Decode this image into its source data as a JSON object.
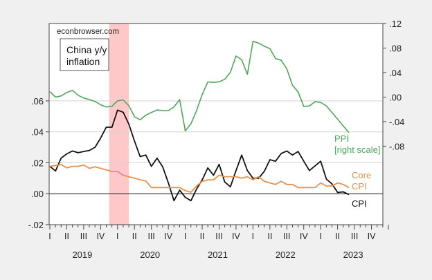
{
  "chart_data": {
    "type": "line",
    "title": "China y/y inflation",
    "watermark": "econbrowser.com",
    "x_frequency": "monthly",
    "x_range": [
      "2019-01",
      "2023-12"
    ],
    "x_quarter_labels": [
      "I",
      "II",
      "III",
      "IV"
    ],
    "x_year_labels": [
      "2019",
      "2020",
      "2021",
      "2022",
      "2023"
    ],
    "left_axis": {
      "ylim": [
        -0.02,
        0.11
      ],
      "ticks": [
        -0.02,
        0.0,
        0.02,
        0.04,
        0.06
      ],
      "tick_labels": [
        "-.02",
        ".00",
        ".02",
        ".04",
        ".06"
      ]
    },
    "right_axis": {
      "ylim": [
        -0.208,
        0.12
      ],
      "ticks": [
        -0.08,
        -0.04,
        0.0,
        0.04,
        0.08,
        0.12
      ],
      "tick_labels": [
        "-.08",
        "-.04",
        ".00",
        ".04",
        ".08",
        ".12"
      ]
    },
    "grid": "horizontal, left axis",
    "zero_line": true,
    "shaded_period": {
      "start": "2019-12",
      "end": "2020-03",
      "color": "#ffc8c8"
    },
    "start_month": "2019-01",
    "series": [
      {
        "name": "CPI",
        "label_lines": [
          "CPI"
        ],
        "axis": "left",
        "color": "#111111",
        "values": [
          0.0177,
          0.0147,
          0.023,
          0.0258,
          0.0276,
          0.0265,
          0.0273,
          0.028,
          0.03,
          0.036,
          0.043,
          0.043,
          0.054,
          0.0527,
          0.045,
          0.034,
          0.024,
          0.025,
          0.0177,
          0.023,
          0.0174,
          0.007,
          -0.0045,
          0.0023,
          -0.0023,
          -0.0045,
          0.003,
          0.009,
          0.0167,
          0.012,
          0.019,
          0.0076,
          0.0045,
          0.015,
          0.025,
          0.015,
          0.01,
          0.01,
          0.0144,
          0.022,
          0.021,
          0.026,
          0.0276,
          0.025,
          0.0273,
          0.021,
          0.015,
          0.018,
          0.021,
          0.0095,
          0.0064,
          0.0008,
          0.0012,
          -0.0005
        ]
      },
      {
        "name": "Core CPI",
        "label_lines": [
          "Core",
          "CPI"
        ],
        "axis": "left",
        "color": "#e8914a",
        "values": [
          0.0177,
          0.0183,
          0.0188,
          0.0167,
          0.0177,
          0.0177,
          0.0185,
          0.0164,
          0.0174,
          0.0164,
          0.0154,
          0.0144,
          0.0144,
          0.012,
          0.011,
          0.01,
          0.009,
          0.0083,
          0.004,
          0.004,
          0.004,
          0.004,
          0.004,
          0.004,
          0.002,
          0.001,
          0.005,
          0.008,
          0.009,
          0.009,
          0.012,
          0.011,
          0.011,
          0.011,
          0.01,
          0.011,
          0.009,
          0.011,
          0.008,
          0.007,
          0.006,
          0.008,
          0.006,
          0.006,
          0.004,
          0.004,
          0.004,
          0.004,
          0.007,
          0.005,
          0.005,
          0.007,
          0.006,
          0.004
        ]
      },
      {
        "name": "PPI",
        "label_lines": [
          "PPI",
          "[right scale]"
        ],
        "axis": "right",
        "color": "#4ea65a",
        "values": [
          0.009,
          0.0,
          0.002,
          0.0076,
          0.011,
          0.003,
          -0.0015,
          -0.004,
          -0.007,
          -0.0125,
          -0.016,
          -0.015,
          -0.006,
          -0.0045,
          -0.014,
          -0.032,
          -0.037,
          -0.0295,
          -0.025,
          -0.021,
          -0.022,
          -0.022,
          -0.016,
          -0.004,
          -0.055,
          -0.0435,
          -0.022,
          0.0045,
          0.0247,
          0.024,
          0.025,
          0.029,
          0.0405,
          0.067,
          0.061,
          0.037,
          0.091,
          0.088,
          0.083,
          0.079,
          0.063,
          0.06,
          0.046,
          0.0195,
          0.0083,
          -0.0152,
          -0.0143,
          -0.0075,
          -0.0087,
          -0.0143,
          -0.025,
          -0.036,
          -0.047,
          -0.058
        ]
      }
    ]
  }
}
